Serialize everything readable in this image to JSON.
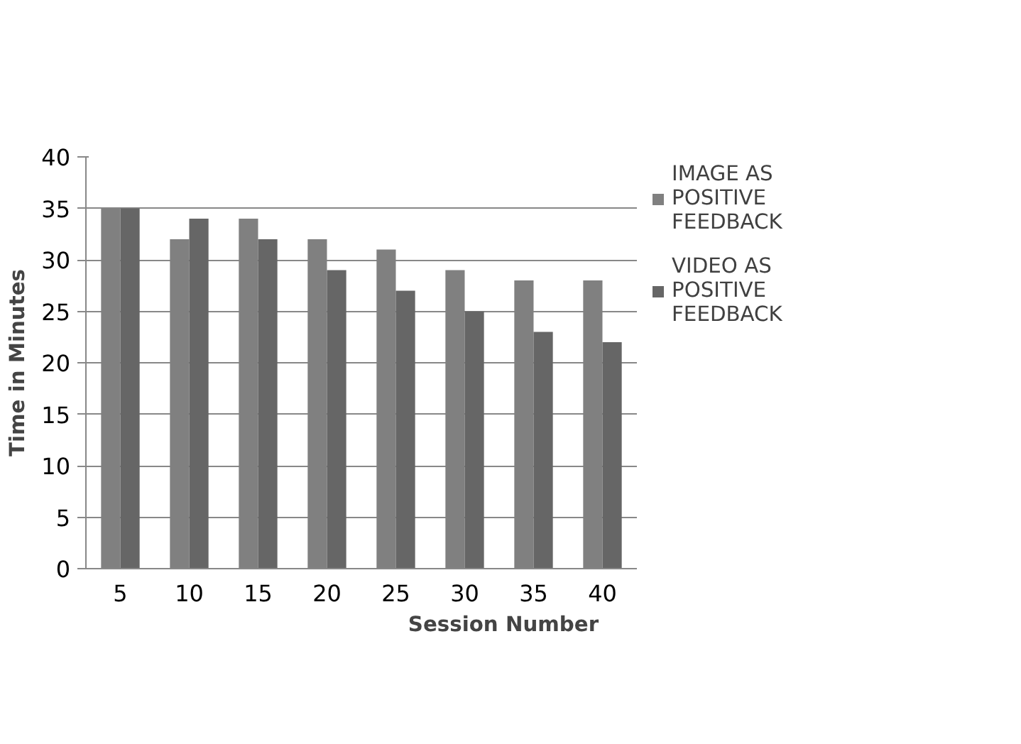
{
  "chart_data": {
    "type": "bar",
    "xlabel": "Session Number",
    "ylabel": "Time in Minutes",
    "categories": [
      "5",
      "10",
      "15",
      "20",
      "25",
      "30",
      "35",
      "40"
    ],
    "series": [
      {
        "name": "IMAGE AS POSITIVE FEEDBACK",
        "color": "#808080",
        "values": [
          35,
          32,
          34,
          32,
          31,
          29,
          28,
          28
        ]
      },
      {
        "name": "VIDEO AS POSITIVE FEEDBACK",
        "color": "#666666",
        "values": [
          35,
          34,
          32,
          29,
          27,
          25,
          23,
          22
        ]
      }
    ],
    "ylim": [
      0,
      40
    ],
    "yticks": [
      0,
      5,
      10,
      15,
      20,
      25,
      30,
      35,
      40
    ],
    "grid": "y",
    "legend": "right"
  }
}
